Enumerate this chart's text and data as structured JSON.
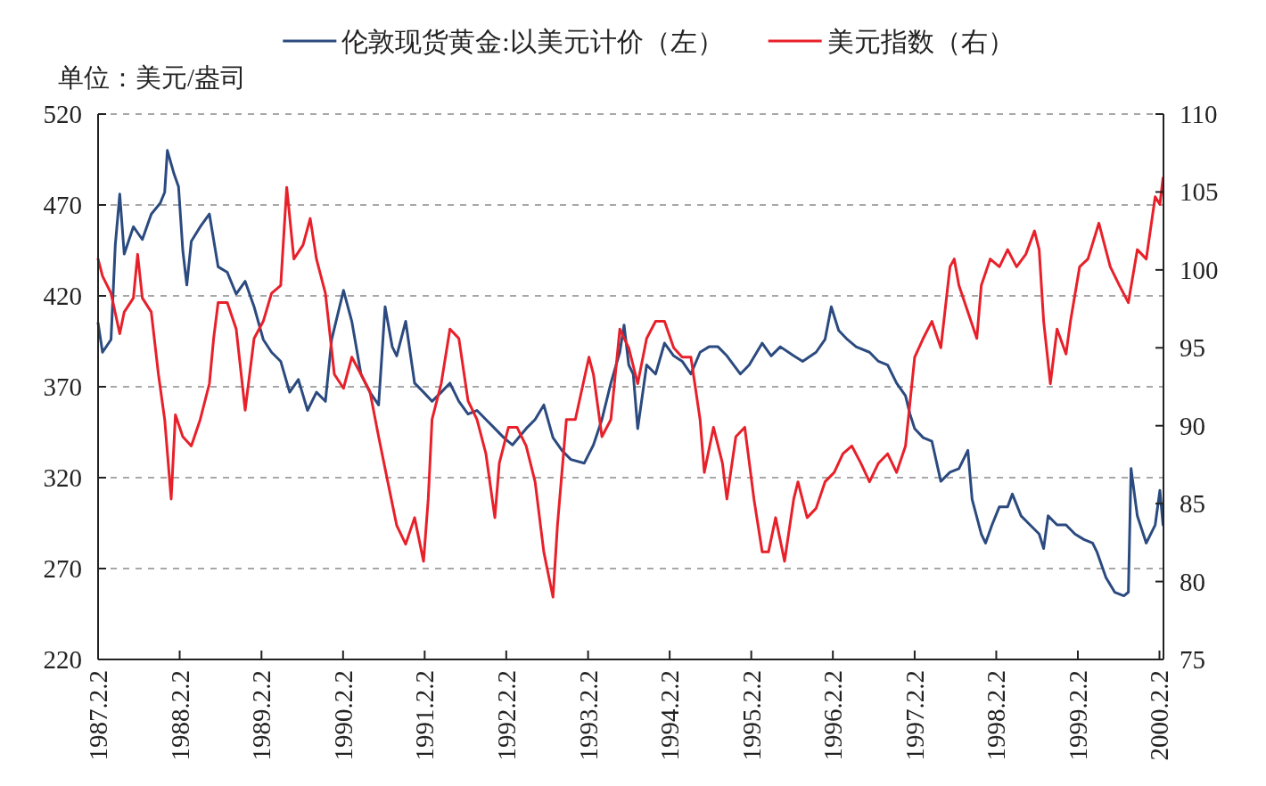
{
  "chart_data": {
    "type": "line",
    "ylabel": "单位：美元/盎司",
    "legend": "top",
    "grid": "y",
    "xlim": [
      "1987-02-02",
      "2000-02-20"
    ],
    "xticks": [
      {
        "value": "1987-02-02",
        "label": "1987.2.2"
      },
      {
        "value": "1988-02-02",
        "label": "1988.2.2"
      },
      {
        "value": "1989-02-02",
        "label": "1989.2.2"
      },
      {
        "value": "1990-02-02",
        "label": "1990.2.2"
      },
      {
        "value": "1991-02-02",
        "label": "1991.2.2"
      },
      {
        "value": "1992-02-02",
        "label": "1992.2.2"
      },
      {
        "value": "1993-02-02",
        "label": "1993.2.2"
      },
      {
        "value": "1994-02-02",
        "label": "1994.2.2"
      },
      {
        "value": "1995-02-02",
        "label": "1995.2.2"
      },
      {
        "value": "1996-02-02",
        "label": "1996.2.2"
      },
      {
        "value": "1997-02-02",
        "label": "1997.2.2"
      },
      {
        "value": "1998-02-02",
        "label": "1998.2.2"
      },
      {
        "value": "1999-02-02",
        "label": "1999.2.2"
      },
      {
        "value": "2000-02-02",
        "label": "2000.2.2"
      }
    ],
    "ylim": [
      220,
      520
    ],
    "yticks": [
      220,
      270,
      320,
      370,
      420,
      470,
      520
    ],
    "y2lim": [
      75,
      110
    ],
    "y2ticks": [
      75,
      80,
      85,
      90,
      95,
      100,
      105,
      110
    ],
    "series": [
      {
        "name": "伦敦现货黄金:以美元计价（左）",
        "color": "#2b4a7f",
        "x": [
          "1987-02-02",
          "1987-02-22",
          "1987-04-01",
          "1987-04-20",
          "1987-05-10",
          "1987-05-30",
          "1987-07-10",
          "1987-08-19",
          "1987-09-28",
          "1987-11-07",
          "1987-11-27",
          "1987-12-09",
          "1988-01-08",
          "1988-01-28",
          "1988-02-16",
          "1988-03-05",
          "1988-03-25",
          "1988-05-04",
          "1988-06-14",
          "1988-07-23",
          "1988-09-02",
          "1988-10-12",
          "1988-11-21",
          "1988-12-31",
          "1989-02-10",
          "1989-03-19",
          "1989-04-29",
          "1989-06-08",
          "1989-07-17",
          "1989-08-27",
          "1989-10-06",
          "1989-11-15",
          "1989-12-13",
          "1990-02-04",
          "1990-03-13",
          "1990-04-23",
          "1990-06-02",
          "1990-07-11",
          "1990-08-09",
          "1990-09-10",
          "1990-09-30",
          "1990-11-09",
          "1990-12-19",
          "1991-01-28",
          "1991-03-07",
          "1991-04-17",
          "1991-05-26",
          "1991-07-05",
          "1991-08-15",
          "1991-09-24",
          "1991-11-03",
          "1991-12-13",
          "1992-01-22",
          "1992-03-01",
          "1992-05-01",
          "1992-06-10",
          "1992-07-19",
          "1992-08-29",
          "1992-10-08",
          "1992-11-17",
          "1993-01-16",
          "1993-02-26",
          "1993-04-05",
          "1993-05-15",
          "1993-06-24",
          "1993-07-13",
          "1993-08-03",
          "1993-08-23",
          "1993-09-12",
          "1993-10-22",
          "1993-12-01",
          "1994-01-10",
          "1994-02-20",
          "1994-03-30",
          "1994-05-08",
          "1994-06-18",
          "1994-07-28",
          "1994-09-06",
          "1994-10-16",
          "1994-12-15",
          "1995-01-24",
          "1995-03-23",
          "1995-05-02",
          "1995-06-12",
          "1995-08-11",
          "1995-09-20",
          "1995-11-19",
          "1995-12-29",
          "1996-01-26",
          "1996-02-28",
          "1996-04-07",
          "1996-05-16",
          "1996-07-15",
          "1996-08-24",
          "1996-10-04",
          "1996-11-13",
          "1996-12-23",
          "1997-01-12",
          "1997-02-02",
          "1997-03-12",
          "1997-04-20",
          "1997-05-30",
          "1997-07-10",
          "1997-08-19",
          "1997-09-28",
          "1997-10-17",
          "1997-11-27",
          "1997-12-16",
          "1998-01-14",
          "1998-02-16",
          "1998-03-25",
          "1998-04-15",
          "1998-05-24",
          "1998-07-03",
          "1998-08-13",
          "1998-09-02",
          "1998-09-22",
          "1998-11-01",
          "1998-12-11",
          "1999-01-20",
          "1999-03-01",
          "1999-04-09",
          "1999-04-29",
          "1999-06-08",
          "1999-07-17",
          "1999-08-27",
          "1999-09-16",
          "1999-09-28",
          "1999-10-26",
          "1999-12-05",
          "2000-01-14",
          "2000-02-04",
          "2000-02-18"
        ],
        "values": [
          405,
          389,
          396,
          448,
          476,
          443,
          458,
          451,
          465,
          471,
          477,
          500,
          487,
          480,
          445,
          426,
          450,
          458,
          465,
          436,
          433,
          421,
          428,
          414,
          396,
          389,
          384,
          367,
          374,
          357,
          367,
          362,
          396,
          423,
          406,
          377,
          367,
          360,
          414,
          392,
          387,
          406,
          372,
          367,
          362,
          367,
          372,
          362,
          355,
          357,
          352,
          347,
          342,
          338,
          347,
          352,
          360,
          342,
          335,
          330,
          328,
          338,
          352,
          372,
          389,
          404,
          382,
          377,
          347,
          382,
          377,
          394,
          387,
          384,
          377,
          389,
          392,
          392,
          387,
          377,
          382,
          394,
          387,
          392,
          387,
          384,
          389,
          396,
          414,
          401,
          396,
          392,
          389,
          384,
          382,
          372,
          365,
          355,
          347,
          342,
          340,
          318,
          323,
          325,
          335,
          308,
          289,
          284,
          294,
          304,
          304,
          311,
          299,
          294,
          289,
          281,
          299,
          294,
          294,
          289,
          286,
          284,
          279,
          265,
          257,
          255,
          257,
          325,
          299,
          284,
          294,
          313,
          294
        ]
      },
      {
        "name": "美元指数（右）",
        "color": "#e8202a",
        "axis": "y2",
        "x": [
          "1987-02-02",
          "1987-02-22",
          "1987-04-01",
          "1987-05-10",
          "1987-05-30",
          "1987-07-10",
          "1987-07-29",
          "1987-08-19",
          "1987-09-28",
          "1987-10-30",
          "1987-11-27",
          "1987-12-26",
          "1988-01-14",
          "1988-02-16",
          "1988-03-25",
          "1988-05-04",
          "1988-06-14",
          "1988-07-03",
          "1988-07-23",
          "1988-09-02",
          "1988-10-12",
          "1988-11-21",
          "1988-12-31",
          "1989-02-10",
          "1989-03-19",
          "1989-04-29",
          "1989-05-26",
          "1989-06-27",
          "1989-08-07",
          "1989-09-08",
          "1989-10-06",
          "1989-11-15",
          "1989-12-25",
          "1990-02-04",
          "1990-03-13",
          "1990-04-23",
          "1990-06-02",
          "1990-07-11",
          "1990-08-21",
          "1990-09-30",
          "1990-11-09",
          "1990-12-19",
          "1991-01-28",
          "1991-02-18",
          "1991-03-07",
          "1991-04-17",
          "1991-05-26",
          "1991-07-05",
          "1991-08-15",
          "1991-09-24",
          "1991-11-03",
          "1991-12-13",
          "1992-01-02",
          "1992-02-12",
          "1992-03-21",
          "1992-05-01",
          "1992-06-10",
          "1992-07-19",
          "1992-08-29",
          "1992-09-18",
          "1992-10-28",
          "1992-12-07",
          "1993-02-06",
          "1993-02-26",
          "1993-04-05",
          "1993-05-15",
          "1993-06-24",
          "1993-08-03",
          "1993-09-12",
          "1993-10-22",
          "1993-12-01",
          "1994-01-10",
          "1994-02-20",
          "1994-03-30",
          "1994-05-08",
          "1994-06-18",
          "1994-07-07",
          "1994-08-17",
          "1994-09-26",
          "1994-10-16",
          "1994-11-25",
          "1995-01-04",
          "1995-02-14",
          "1995-03-23",
          "1995-04-20",
          "1995-05-22",
          "1995-07-01",
          "1995-08-11",
          "1995-08-30",
          "1995-10-10",
          "1995-11-19",
          "1995-12-29",
          "1996-02-08",
          "1996-03-18",
          "1996-04-27",
          "1996-06-06",
          "1996-07-15",
          "1996-08-24",
          "1996-10-04",
          "1996-11-13",
          "1996-12-23",
          "1997-02-02",
          "1997-03-12",
          "1997-04-20",
          "1997-05-30",
          "1997-07-10",
          "1997-07-29",
          "1997-08-19",
          "1997-09-28",
          "1997-11-07",
          "1997-11-27",
          "1998-01-06",
          "1998-02-16",
          "1998-03-25",
          "1998-05-04",
          "1998-06-14",
          "1998-07-23",
          "1998-08-13",
          "1998-09-02",
          "1998-10-02",
          "1998-11-01",
          "1998-12-11",
          "1998-12-31",
          "1999-02-10",
          "1999-03-19",
          "1999-05-07",
          "1999-06-27",
          "1999-08-07",
          "1999-09-16",
          "1999-10-26",
          "1999-12-05",
          "2000-01-14",
          "2000-02-04",
          "2000-02-18"
        ],
        "values": [
          100.7,
          99.6,
          98.5,
          95.9,
          97.3,
          98.2,
          101.0,
          98.2,
          97.3,
          93.3,
          90.4,
          85.3,
          90.7,
          89.3,
          88.7,
          90.4,
          92.7,
          95.6,
          97.9,
          97.9,
          96.2,
          91.0,
          95.6,
          96.7,
          98.5,
          99.0,
          105.3,
          100.7,
          101.6,
          103.3,
          100.7,
          98.5,
          93.3,
          92.4,
          94.4,
          93.3,
          92.2,
          89.3,
          86.4,
          83.6,
          82.4,
          84.1,
          81.3,
          85.3,
          90.4,
          92.7,
          96.2,
          95.6,
          91.6,
          90.4,
          88.2,
          84.1,
          87.6,
          89.9,
          89.9,
          88.7,
          86.4,
          81.9,
          79.0,
          83.6,
          90.4,
          90.4,
          94.4,
          93.3,
          89.3,
          90.4,
          96.2,
          95.0,
          92.7,
          95.6,
          96.7,
          96.7,
          95.0,
          94.4,
          94.4,
          90.4,
          87.0,
          89.9,
          87.6,
          85.3,
          89.3,
          89.9,
          85.3,
          81.9,
          81.9,
          84.1,
          81.3,
          85.3,
          86.4,
          84.1,
          84.7,
          86.4,
          87.0,
          88.2,
          88.7,
          87.6,
          86.4,
          87.6,
          88.2,
          87.0,
          88.7,
          94.4,
          95.6,
          96.7,
          95.0,
          100.2,
          100.7,
          99.0,
          97.3,
          95.6,
          99.0,
          100.7,
          100.2,
          101.3,
          100.2,
          101.0,
          102.5,
          101.3,
          96.7,
          92.7,
          96.2,
          94.6,
          96.7,
          100.2,
          100.7,
          103.0,
          100.2,
          99.0,
          97.9,
          101.3,
          100.7,
          104.7,
          104.2,
          105.9
        ]
      }
    ]
  }
}
